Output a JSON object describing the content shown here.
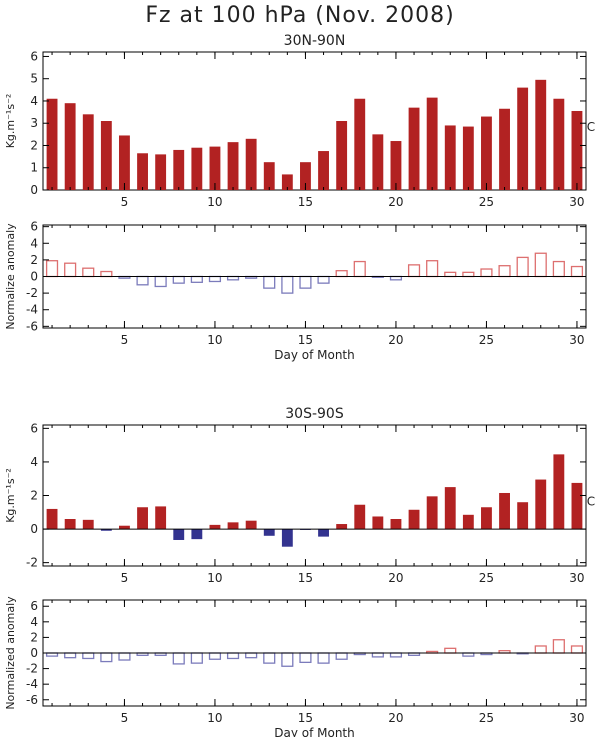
{
  "title": "Fz at 100 hPa (Nov. 2008)",
  "colors": {
    "bar_pos": "#b22222",
    "bar_neg": "#33338f",
    "outline_pos": "#dd6f6f",
    "outline_neg": "#7b7bbb",
    "axis": "#000000"
  },
  "chart_data": [
    {
      "id": "nh_fz",
      "type": "bar",
      "style": "filled",
      "subtitle": "30N-90N",
      "ylabel": "Kg.m⁻¹s⁻²",
      "xlabel": "",
      "side_label": "C M",
      "ylim": [
        0,
        6.2
      ],
      "yticks": [
        0,
        1,
        2,
        3,
        4,
        5,
        6
      ],
      "xticks": [
        5,
        10,
        15,
        20,
        25,
        30
      ],
      "x": [
        1,
        2,
        3,
        4,
        5,
        6,
        7,
        8,
        9,
        10,
        11,
        12,
        13,
        14,
        15,
        16,
        17,
        18,
        19,
        20,
        21,
        22,
        23,
        24,
        25,
        26,
        27,
        28,
        29,
        30
      ],
      "values": [
        4.1,
        3.9,
        3.4,
        3.1,
        2.45,
        1.65,
        1.6,
        1.8,
        1.9,
        1.95,
        2.15,
        2.3,
        1.25,
        0.7,
        1.25,
        1.75,
        3.1,
        4.1,
        2.5,
        2.2,
        3.7,
        4.15,
        2.9,
        2.85,
        3.3,
        3.65,
        4.6,
        4.95,
        4.1,
        3.55
      ]
    },
    {
      "id": "nh_anom",
      "type": "bar",
      "style": "outline",
      "ylabel": "Normalize anomaly",
      "xlabel": "Day of Month",
      "ylim": [
        -6.2,
        6.2
      ],
      "yticks": [
        -6,
        -4,
        -2,
        0,
        2,
        4,
        6
      ],
      "xticks": [
        5,
        10,
        15,
        20,
        25,
        30
      ],
      "x": [
        1,
        2,
        3,
        4,
        5,
        6,
        7,
        8,
        9,
        10,
        11,
        12,
        13,
        14,
        15,
        16,
        17,
        18,
        19,
        20,
        21,
        22,
        23,
        24,
        25,
        26,
        27,
        28,
        29,
        30
      ],
      "values": [
        1.9,
        1.6,
        1.0,
        0.6,
        -0.2,
        -1.0,
        -1.2,
        -0.8,
        -0.7,
        -0.6,
        -0.4,
        -0.2,
        -1.4,
        -2.0,
        -1.4,
        -0.8,
        0.7,
        1.8,
        -0.05,
        -0.4,
        1.4,
        1.9,
        0.5,
        0.5,
        0.9,
        1.3,
        2.3,
        2.8,
        1.8,
        1.2
      ]
    },
    {
      "id": "sh_fz",
      "type": "bar",
      "style": "filled",
      "subtitle": "30S-90S",
      "ylabel": "Kg.m⁻¹s⁻²",
      "xlabel": "",
      "side_label": "C M",
      "ylim": [
        -2.2,
        6.2
      ],
      "yticks": [
        -2,
        0,
        2,
        4,
        6
      ],
      "xticks": [
        5,
        10,
        15,
        20,
        25,
        30
      ],
      "x": [
        1,
        2,
        3,
        4,
        5,
        6,
        7,
        8,
        9,
        10,
        11,
        12,
        13,
        14,
        15,
        16,
        17,
        18,
        19,
        20,
        21,
        22,
        23,
        24,
        25,
        26,
        27,
        28,
        29,
        30
      ],
      "values": [
        1.2,
        0.6,
        0.55,
        -0.1,
        0.2,
        1.3,
        1.35,
        -0.65,
        -0.6,
        0.25,
        0.4,
        0.5,
        -0.4,
        -1.05,
        -0.05,
        -0.45,
        0.3,
        1.45,
        0.75,
        0.6,
        1.15,
        1.95,
        2.5,
        0.85,
        1.3,
        2.15,
        1.6,
        2.95,
        4.45,
        2.75
      ]
    },
    {
      "id": "sh_anom",
      "type": "bar",
      "style": "outline",
      "ylabel": "Normalized anomaly",
      "xlabel": "Day of Month",
      "ylim": [
        -6.8,
        6.8
      ],
      "yticks": [
        -6,
        -4,
        -2,
        0,
        2,
        4,
        6
      ],
      "xticks": [
        5,
        10,
        15,
        20,
        25,
        30
      ],
      "x": [
        1,
        2,
        3,
        4,
        5,
        6,
        7,
        8,
        9,
        10,
        11,
        12,
        13,
        14,
        15,
        16,
        17,
        18,
        19,
        20,
        21,
        22,
        23,
        24,
        25,
        26,
        27,
        28,
        29,
        30
      ],
      "values": [
        -0.4,
        -0.6,
        -0.7,
        -1.1,
        -0.9,
        -0.3,
        -0.3,
        -1.4,
        -1.3,
        -0.8,
        -0.7,
        -0.6,
        -1.3,
        -1.7,
        -1.2,
        -1.3,
        -0.8,
        -0.2,
        -0.5,
        -0.5,
        -0.3,
        0.2,
        0.6,
        -0.4,
        -0.2,
        0.3,
        -0.1,
        0.9,
        1.7,
        0.9
      ]
    }
  ]
}
